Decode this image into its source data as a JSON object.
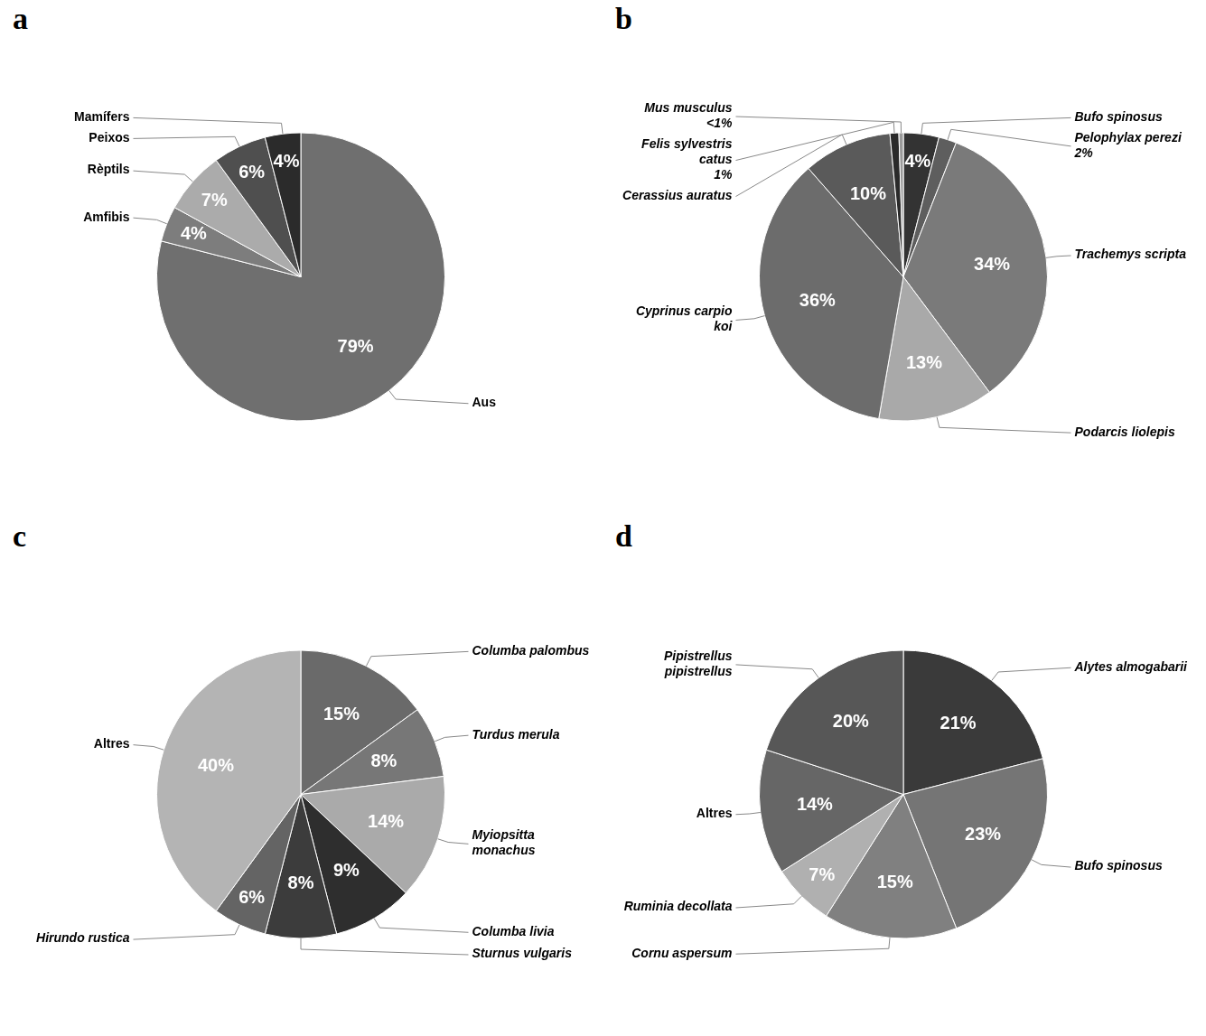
{
  "chart_data": [
    {
      "type": "pie",
      "panel": "a",
      "categories": [
        "Aus",
        "Amfibis",
        "Rèptils",
        "Peixos",
        "Mamífers"
      ],
      "values": [
        79,
        4,
        7,
        6,
        4
      ],
      "value_labels": [
        "79%",
        "4%",
        "7%",
        "6%",
        "4%"
      ],
      "colors": [
        "#6f6f6f",
        "#7d7d7d",
        "#ababab",
        "#4f4f4f",
        "#2b2b2b"
      ],
      "data_labels": true
    },
    {
      "type": "pie",
      "panel": "b",
      "categories": [
        "Bufo spinosus",
        "Pelophylax perezi",
        "Trachemys scripta",
        "Podarcis liolepis",
        "Cyprinus carpio koi",
        "Cerassius auratus",
        "Felis sylvestris catus",
        "Mus musculus"
      ],
      "values": [
        4,
        2,
        34,
        13,
        36,
        10,
        1,
        0.5
      ],
      "value_labels": [
        "4%",
        "2%",
        "34%",
        "13%",
        "36%",
        "10%",
        "1%",
        "<1%"
      ],
      "colors": [
        "#333333",
        "#5e5e5e",
        "#7a7a7a",
        "#a9a9a9",
        "#6c6c6c",
        "#5a5a5a",
        "#2a2a2a",
        "#9a9a9a"
      ],
      "data_labels": true
    },
    {
      "type": "pie",
      "panel": "c",
      "categories": [
        "Columba palombus",
        "Turdus merula",
        "Myiopsitta monachus",
        "Columba livia",
        "Sturnus vulgaris",
        "Hirundo rustica",
        "Altres"
      ],
      "values": [
        15,
        8,
        14,
        9,
        8,
        6,
        40
      ],
      "value_labels": [
        "15%",
        "8%",
        "14%",
        "9%",
        "8%",
        "6%",
        "40%"
      ],
      "colors": [
        "#6a6a6a",
        "#777777",
        "#aaaaaa",
        "#2e2e2e",
        "#3c3c3c",
        "#646464",
        "#b4b4b4"
      ],
      "data_labels": true
    },
    {
      "type": "pie",
      "panel": "d",
      "categories": [
        "Alytes almogabarii",
        "Bufo spinosus",
        "Cornu aspersum",
        "Ruminia decollata",
        "Altres",
        "Pipistrellus pipistrellus"
      ],
      "values": [
        21,
        23,
        15,
        7,
        14,
        20
      ],
      "value_labels": [
        "21%",
        "23%",
        "15%",
        "7%",
        "14%",
        "20%"
      ],
      "colors": [
        "#3a3a3a",
        "#757575",
        "#808080",
        "#b0b0b0",
        "#666666",
        "#575757"
      ],
      "data_labels": true
    }
  ]
}
